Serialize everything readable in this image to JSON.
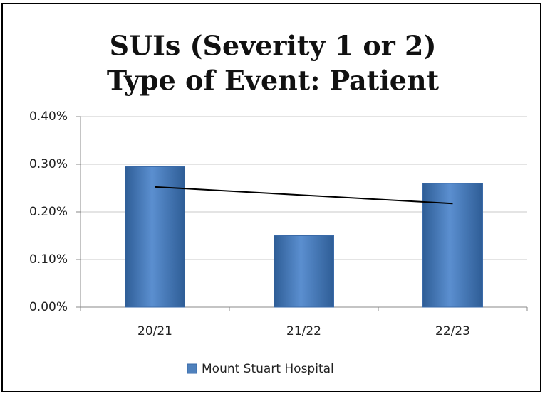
{
  "chart_data": {
    "type": "bar",
    "title": [
      "SUIs (Severity 1 or 2)",
      "Type of Event: Patient"
    ],
    "categories": [
      "20/21",
      "21/22",
      "22/23"
    ],
    "series": [
      {
        "name": "Mount Stuart Hospital",
        "color": "#4f81bd",
        "values": [
          0.295,
          0.15,
          0.26
        ]
      }
    ],
    "trendline": {
      "color": "#000000",
      "values": [
        0.2525,
        0.2175
      ]
    },
    "ylim": [
      0,
      0.4
    ],
    "yticks": [
      {
        "value": 0,
        "label": "0.00%"
      },
      {
        "value": 0.1,
        "label": "0.10%"
      },
      {
        "value": 0.2,
        "label": "0.20%"
      },
      {
        "value": 0.3,
        "label": "0.30%"
      },
      {
        "value": 0.4,
        "label": "0.40%"
      }
    ],
    "grid": true,
    "legend": "bottom"
  }
}
